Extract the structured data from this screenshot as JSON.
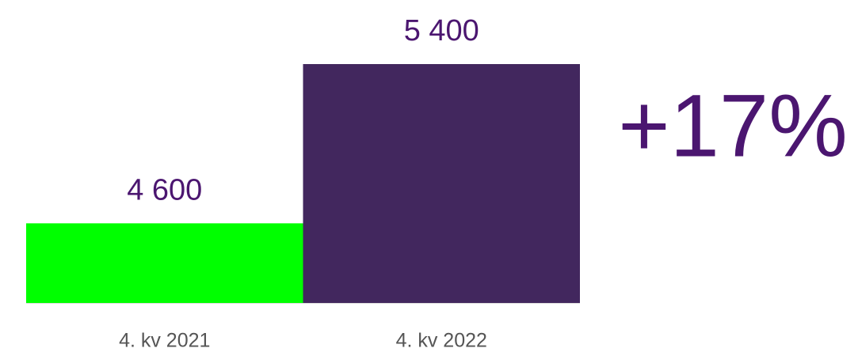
{
  "chart_data": {
    "type": "bar",
    "categories": [
      "4. kv 2021",
      "4. kv 2022"
    ],
    "values": [
      4600,
      5400
    ],
    "value_labels": [
      "4 600",
      "5 400"
    ],
    "colors": [
      "#00ff00",
      "#42275e"
    ],
    "ylim": [
      4200,
      5400
    ],
    "annotation": "+17%"
  }
}
